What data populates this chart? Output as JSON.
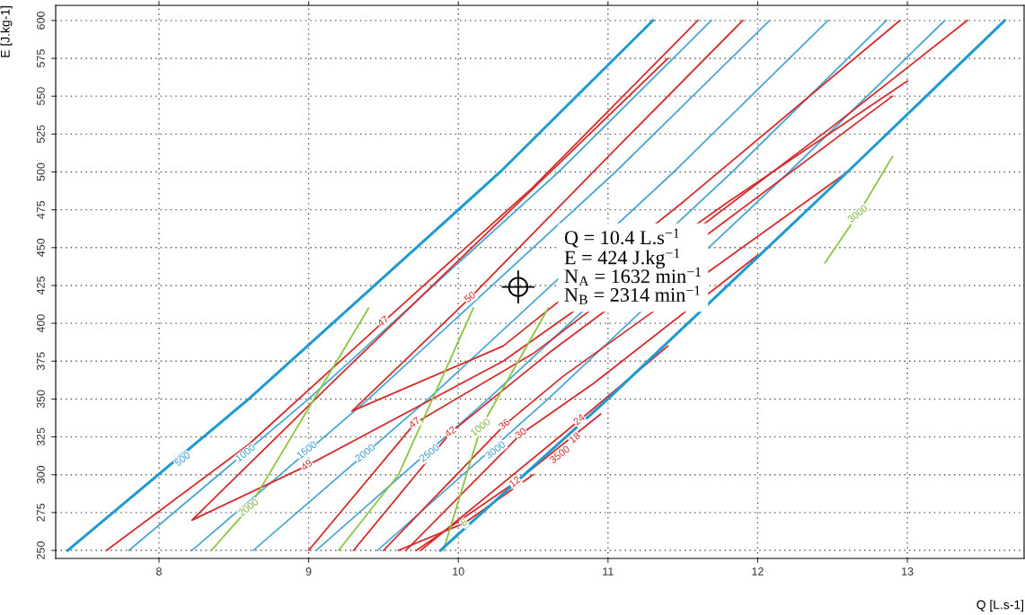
{
  "chart_data": {
    "type": "line",
    "xlabel": "Q [L.s-1]",
    "ylabel": "E [J.kg-1]",
    "xlim": [
      7.31,
      13.78
    ],
    "ylim": [
      244.7,
      610
    ],
    "xticks": [
      8,
      9,
      10,
      11,
      12,
      13
    ],
    "yticks": [
      250,
      275,
      300,
      325,
      350,
      375,
      400,
      425,
      450,
      475,
      500,
      525,
      550,
      575,
      600
    ],
    "grid": true,
    "line_style": "solid",
    "series": [
      {
        "color": "#1f9bd1",
        "x": [
          7.39,
          8.6,
          10.28,
          11.3
        ],
        "values": [
          250,
          350,
          500,
          600
        ]
      },
      {
        "color": "#4aa6d6",
        "x": [
          7.8,
          9.0,
          10.67,
          11.69
        ],
        "values": [
          250,
          350,
          500,
          600
        ]
      },
      {
        "color": "#4aa6d6",
        "x": [
          8.22,
          9.4,
          11.05,
          12.08
        ],
        "values": [
          250,
          350,
          500,
          600
        ]
      },
      {
        "color": "#4aa6d6",
        "x": [
          8.63,
          9.8,
          11.44,
          12.47
        ],
        "values": [
          250,
          350,
          500,
          600
        ]
      },
      {
        "color": "#4aa6d6",
        "x": [
          9.05,
          10.2,
          11.83,
          12.86
        ],
        "values": [
          250,
          350,
          500,
          600
        ]
      },
      {
        "color": "#4aa6d6",
        "x": [
          9.46,
          10.6,
          12.21,
          13.25
        ],
        "values": [
          250,
          350,
          500,
          600
        ]
      },
      {
        "color": "#1f9bd1",
        "x": [
          9.88,
          11.0,
          12.6,
          13.65
        ],
        "values": [
          250,
          350,
          500,
          600
        ]
      },
      {
        "color": "#d62b2b",
        "x": [
          7.65,
          8.6,
          9.5,
          10.5,
          11.6
        ],
        "values": [
          250,
          320,
          401,
          490,
          600
        ]
      },
      {
        "color": "#d62b2b",
        "x": [
          11.4,
          10.3,
          9.2,
          8.22,
          8.99,
          10.3,
          11.8,
          13.0
        ],
        "values": [
          575,
          470,
          365,
          270,
          306,
          375,
          480,
          560
        ]
      },
      {
        "color": "#d62b2b",
        "x": [
          11.9,
          11.0,
          10.08,
          9.29,
          10.3,
          11.5,
          12.95
        ],
        "values": [
          600,
          510,
          417,
          342,
          385,
          480,
          600
        ]
      },
      {
        "color": "#d62b2b",
        "x": [
          9.0,
          9.71,
          10.5,
          12.5,
          13.4
        ],
        "values": [
          250,
          334,
          380,
          530,
          600
        ]
      },
      {
        "color": "#d62b2b",
        "x": [
          9.3,
          9.95,
          10.6,
          12.9
        ],
        "values": [
          250,
          328,
          380,
          550
        ]
      },
      {
        "color": "#d62b2b",
        "x": [
          9.5,
          10.31,
          10.7,
          12.6
        ],
        "values": [
          250,
          333,
          365,
          500
        ]
      },
      {
        "color": "#d62b2b",
        "x": [
          9.65,
          10.42,
          10.9,
          12.0
        ],
        "values": [
          250,
          327,
          360,
          445
        ]
      },
      {
        "color": "#d62b2b",
        "x": [
          9.75,
          10.81,
          11.4
        ],
        "values": [
          250,
          336,
          385
        ]
      },
      {
        "color": "#d62b2b",
        "x": [
          9.72,
          10.38,
          10.95
        ],
        "values": [
          250,
          295,
          340
        ]
      },
      {
        "color": "#d62b2b",
        "x": [
          9.6,
          10.04,
          10.5
        ],
        "values": [
          250,
          268,
          300
        ]
      },
      {
        "color": "#8cc63f",
        "x": [
          8.35,
          8.6,
          9.4
        ],
        "values": [
          250,
          278,
          410
        ]
      },
      {
        "color": "#8cc63f",
        "x": [
          9.2,
          9.6,
          10.1
        ],
        "values": [
          250,
          300,
          410
        ]
      },
      {
        "color": "#8cc63f",
        "x": [
          9.9,
          10.15,
          10.6
        ],
        "values": [
          250,
          331,
          410
        ]
      },
      {
        "color": "#8cc63f",
        "x": [
          12.45,
          12.67,
          12.9
        ],
        "values": [
          440,
          472,
          510
        ]
      },
      {
        "type": "scatter",
        "color": "#000000",
        "marker": "circle",
        "x": [
          10.4
        ],
        "values": [
          424
        ]
      }
    ],
    "annotations": [
      {
        "text": "500",
        "x": 8.16,
        "y": 310
      },
      {
        "text": "1000",
        "x": 8.58,
        "y": 314
      },
      {
        "text": "1500",
        "x": 8.99,
        "y": 316
      },
      {
        "text": "2000",
        "x": 9.38,
        "y": 314
      },
      {
        "text": "2500",
        "x": 9.81,
        "y": 314
      },
      {
        "text": "3000",
        "x": 10.25,
        "y": 316
      },
      {
        "text": "3500",
        "x": 10.68,
        "y": 313
      },
      {
        "text": "47",
        "x": 9.5,
        "y": 401
      },
      {
        "text": "50",
        "x": 10.08,
        "y": 417
      },
      {
        "text": "49",
        "x": 8.99,
        "y": 306
      },
      {
        "text": "47",
        "x": 9.71,
        "y": 334
      },
      {
        "text": "42",
        "x": 9.95,
        "y": 328
      },
      {
        "text": "36",
        "x": 10.31,
        "y": 333
      },
      {
        "text": "30",
        "x": 10.42,
        "y": 327
      },
      {
        "text": "24",
        "x": 10.81,
        "y": 336
      },
      {
        "text": "18",
        "x": 10.78,
        "y": 324
      },
      {
        "text": "12",
        "x": 10.38,
        "y": 295
      },
      {
        "text": "6",
        "x": 10.04,
        "y": 268
      },
      {
        "text": "2000",
        "x": 8.6,
        "y": 278
      },
      {
        "text": "1000",
        "x": 10.15,
        "y": 331
      },
      {
        "text": "3000",
        "x": 12.67,
        "y": 472
      },
      "Q = 10.4 L.s$^{−1}$",
      "E = 424 J.kg$^{−1}$",
      "N$_{A}$ = 1632 min$^{−1}$",
      "N$_{B}$ = 2314 min$^{−1}$"
    ]
  }
}
